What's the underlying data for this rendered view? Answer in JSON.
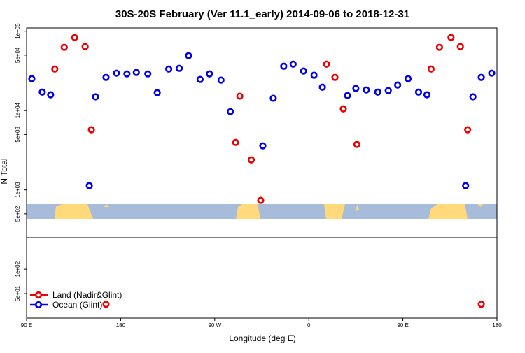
{
  "chart_data": [
    {
      "type": "scatter",
      "title": "30S-20S February (Ver 11.1_early)   2014-09-06 to 2018-12-31",
      "y_label": "N Total",
      "log_y": true,
      "xlim": [
        90,
        540
      ],
      "ylim": [
        250,
        110000
      ],
      "yticks": [
        {
          "value": 100000,
          "label": "1e+05"
        },
        {
          "value": 50000,
          "label": "5e+04"
        },
        {
          "value": 10000,
          "label": "1e+04"
        },
        {
          "value": 5000,
          "label": "5e+03"
        },
        {
          "value": 1000,
          "label": "1e+03"
        },
        {
          "value": 500,
          "label": "5e+02"
        }
      ],
      "series": [
        {
          "color": "#ee0000",
          "x": [
            117,
            126,
            136,
            146,
            152,
            290,
            294,
            305,
            314,
            377,
            385,
            393,
            406,
            477,
            485,
            496,
            505,
            512
          ],
          "values": [
            33400,
            62700,
            83300,
            64000,
            5730,
            3970,
            15200,
            2390,
            738,
            38500,
            26200,
            10500,
            3740,
            33400,
            62700,
            83300,
            64000,
            5730
          ]
        },
        {
          "color": "#0000ee",
          "x": [
            95,
            105,
            113,
            150,
            156,
            166,
            176,
            186,
            195,
            206,
            215,
            226,
            236,
            245,
            256,
            265,
            276,
            285,
            316,
            326,
            336,
            345,
            355,
            365,
            373,
            397,
            405,
            415,
            426,
            436,
            445,
            455,
            465,
            473,
            510,
            517,
            525,
            535
          ],
          "values": [
            25200,
            17100,
            15800,
            1130,
            14900,
            26200,
            29600,
            29000,
            30200,
            29000,
            16800,
            33400,
            34100,
            49200,
            24700,
            29000,
            24200,
            9700,
            3590,
            14300,
            36200,
            38500,
            31500,
            27900,
            19700,
            15500,
            19000,
            18200,
            17100,
            17800,
            21000,
            25200,
            17100,
            15800,
            1130,
            14900,
            26200,
            29600
          ]
        }
      ]
    },
    {
      "type": "scatter",
      "x_label": "Longitude (deg E)",
      "log_y": true,
      "legend": "bottom-left",
      "xlim": [
        90,
        540
      ],
      "xticks": [
        {
          "value": 90,
          "label": "90 E"
        },
        {
          "value": 180,
          "label": "180"
        },
        {
          "value": 270,
          "label": "90 W"
        },
        {
          "value": 360,
          "label": "0"
        },
        {
          "value": 450,
          "label": "90 E"
        },
        {
          "value": 540,
          "label": "180"
        }
      ],
      "ylim": [
        25,
        245
      ],
      "yticks": [
        {
          "value": 100,
          "label": "1e+02"
        },
        {
          "value": 50,
          "label": "5e+01"
        }
      ],
      "series": [
        {
          "name": "Land (Nadir&Glint)",
          "color": "#ee0000",
          "x": [
            166,
            525
          ],
          "values": [
            37,
            37
          ]
        },
        {
          "name": "Ocean (Glint)",
          "color": "#0000ee",
          "x": [],
          "values": []
        }
      ]
    }
  ]
}
